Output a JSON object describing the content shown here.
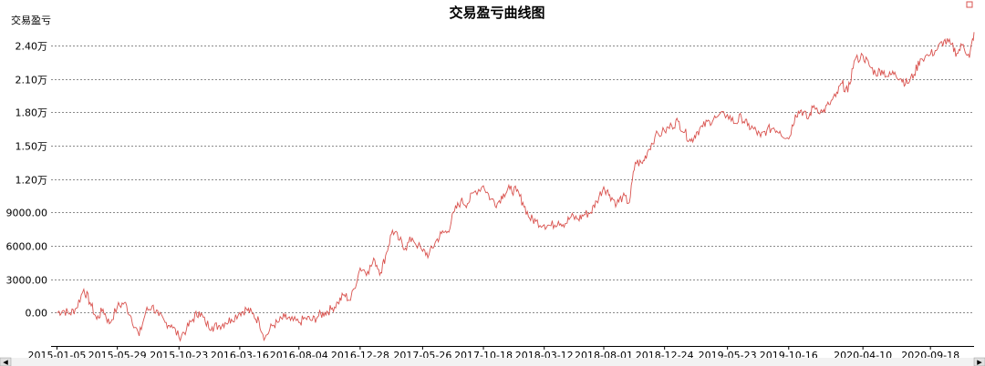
{
  "chart_data": {
    "type": "line",
    "title": "交易盈亏曲线图",
    "ylabel": "交易盈亏",
    "xlabel": "",
    "ylim": [
      -3000,
      25800
    ],
    "y_ticks": [
      {
        "value": 0,
        "label": "0.00"
      },
      {
        "value": 3000,
        "label": "3000.00"
      },
      {
        "value": 6000,
        "label": "6000.00"
      },
      {
        "value": 9000,
        "label": "9000.00"
      },
      {
        "value": 12000,
        "label": "1.20万"
      },
      {
        "value": 15000,
        "label": "1.50万"
      },
      {
        "value": 18000,
        "label": "1.80万"
      },
      {
        "value": 21000,
        "label": "2.10万"
      },
      {
        "value": 24000,
        "label": "2.40万"
      }
    ],
    "x_ticks": [
      "2015-01-05",
      "2015-05-29",
      "2015-10-23",
      "2016-03-16",
      "2016-08-04",
      "2016-12-28",
      "2017-05-26",
      "2017-10-18",
      "2018-03-12",
      "2018-08-01",
      "2018-12-24",
      "2019-05-23",
      "2019-10-16",
      "2020-04-10",
      "2020-09-18"
    ],
    "grid": true,
    "legend": "none",
    "colors": {
      "line": "#d9534f",
      "grid": "#8a8a8a",
      "scroll_marker": "#d9534f"
    },
    "series": [
      {
        "x": [
          "2015-01-05",
          "2015-01-20",
          "2015-02-05",
          "2015-02-20",
          "2015-03-10",
          "2015-03-25",
          "2015-04-10",
          "2015-04-25",
          "2015-05-10",
          "2015-05-29",
          "2015-06-15",
          "2015-07-01",
          "2015-07-20",
          "2015-08-05",
          "2015-08-20",
          "2015-09-05",
          "2015-09-20",
          "2015-10-05",
          "2015-10-23",
          "2015-11-10",
          "2015-11-25",
          "2015-12-10",
          "2015-12-25",
          "2016-01-10",
          "2016-01-25",
          "2016-02-10",
          "2016-02-25",
          "2016-03-16",
          "2016-04-01",
          "2016-04-15",
          "2016-05-01",
          "2016-05-15",
          "2016-06-01",
          "2016-06-15",
          "2016-07-01",
          "2016-07-15",
          "2016-08-04",
          "2016-08-20",
          "2016-09-05",
          "2016-09-20",
          "2016-10-05",
          "2016-10-20",
          "2016-11-05",
          "2016-11-20",
          "2016-12-05",
          "2016-12-28",
          "2017-01-15",
          "2017-02-01",
          "2017-02-15",
          "2017-03-01",
          "2017-03-15",
          "2017-04-01",
          "2017-04-15",
          "2017-05-01",
          "2017-05-26",
          "2017-06-10",
          "2017-06-25",
          "2017-07-10",
          "2017-07-25",
          "2017-08-10",
          "2017-08-25",
          "2017-09-10",
          "2017-09-25",
          "2017-10-18",
          "2017-11-05",
          "2017-11-20",
          "2017-12-05",
          "2017-12-20",
          "2018-01-05",
          "2018-01-20",
          "2018-02-05",
          "2018-02-20",
          "2018-03-12",
          "2018-03-28",
          "2018-04-15",
          "2018-05-01",
          "2018-05-15",
          "2018-06-01",
          "2018-06-15",
          "2018-07-01",
          "2018-07-15",
          "2018-08-01",
          "2018-08-15",
          "2018-09-01",
          "2018-09-15",
          "2018-10-01",
          "2018-10-15",
          "2018-11-01",
          "2018-11-15",
          "2018-12-01",
          "2018-12-24",
          "2019-01-10",
          "2019-01-25",
          "2019-02-10",
          "2019-02-25",
          "2019-03-10",
          "2019-03-25",
          "2019-04-10",
          "2019-04-25",
          "2019-05-23",
          "2019-06-10",
          "2019-06-25",
          "2019-07-10",
          "2019-07-25",
          "2019-08-10",
          "2019-08-25",
          "2019-09-10",
          "2019-09-25",
          "2019-10-16",
          "2019-11-01",
          "2019-11-15",
          "2019-12-01",
          "2019-12-15",
          "2020-01-05",
          "2020-01-20",
          "2020-02-05",
          "2020-02-20",
          "2020-03-05",
          "2020-03-20",
          "2020-04-10",
          "2020-04-25",
          "2020-05-10",
          "2020-05-25",
          "2020-06-10",
          "2020-06-25",
          "2020-07-10",
          "2020-07-25",
          "2020-08-10",
          "2020-08-25",
          "2020-09-18",
          "2020-10-05",
          "2020-10-20",
          "2020-11-05",
          "2020-11-20",
          "2020-12-05",
          "2020-12-20",
          "2020-12-31"
        ],
        "values": [
          0,
          200,
          -100,
          400,
          2100,
          900,
          -600,
          300,
          -1000,
          500,
          900,
          -400,
          -2100,
          100,
          600,
          -300,
          -900,
          -1100,
          -2200,
          -1500,
          -600,
          100,
          -900,
          -1300,
          -1200,
          -900,
          -600,
          0,
          300,
          -100,
          -800,
          -2300,
          -1200,
          -900,
          -400,
          -700,
          -900,
          -500,
          -700,
          -300,
          0,
          300,
          900,
          1600,
          1100,
          4000,
          3700,
          4700,
          3600,
          5400,
          7400,
          6500,
          5800,
          6700,
          5500,
          5200,
          6300,
          7100,
          7300,
          9100,
          10000,
          9800,
          10800,
          11400,
          10200,
          9800,
          10700,
          11100,
          10900,
          9900,
          8500,
          8200,
          7900,
          7800,
          8200,
          8000,
          8600,
          8400,
          8800,
          9000,
          10000,
          11300,
          10600,
          9800,
          10400,
          9900,
          13500,
          13400,
          14600,
          15800,
          16300,
          16800,
          17200,
          16200,
          15400,
          16200,
          16700,
          17200,
          17500,
          17800,
          17000,
          17600,
          16800,
          16500,
          15800,
          16400,
          16600,
          16300,
          15600,
          17800,
          18200,
          17400,
          18600,
          18000,
          18700,
          19400,
          20600,
          19800,
          22600,
          23100,
          22200,
          21500,
          21800,
          21200,
          21600,
          21000,
          20600,
          21400,
          22800,
          23200,
          23700,
          24400,
          24100,
          23300,
          24100,
          22900,
          25200
        ]
      }
    ]
  },
  "scrollbar": {
    "left_arrow": "◂",
    "right_arrow": "▸"
  }
}
